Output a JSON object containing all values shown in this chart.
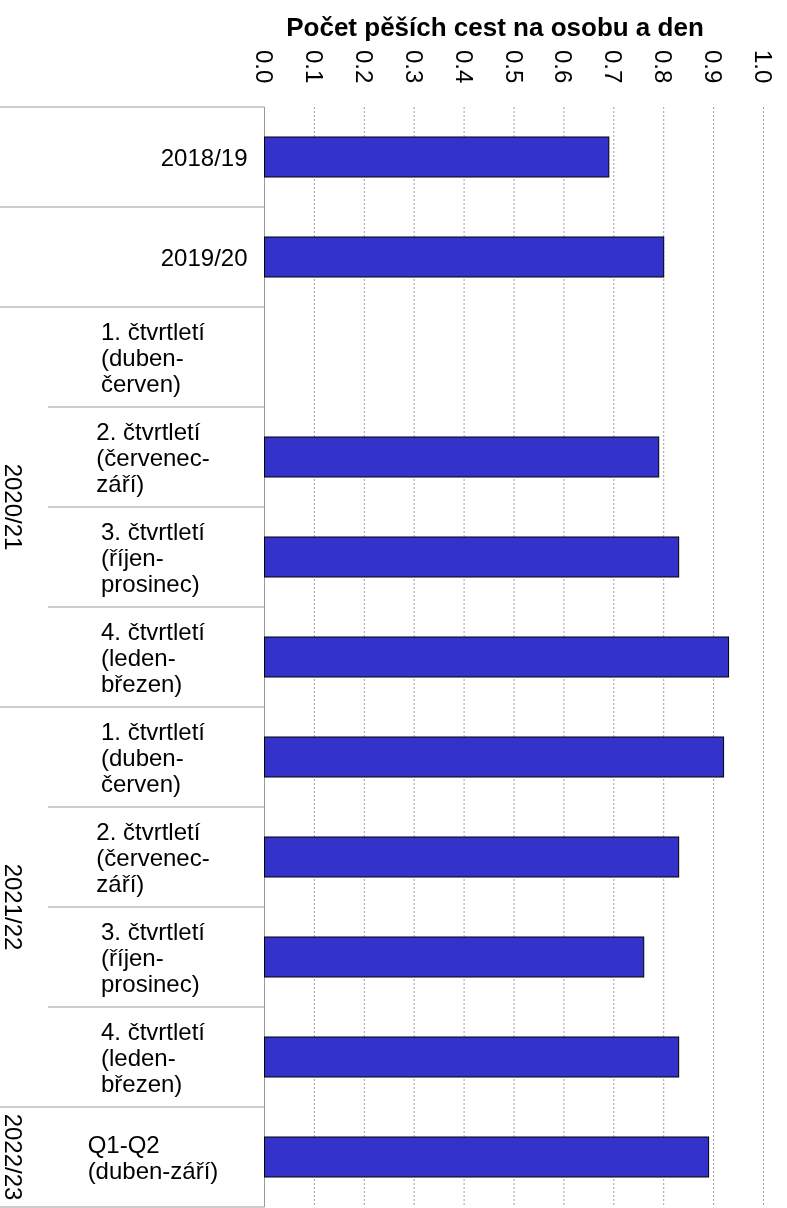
{
  "chart_data": {
    "type": "bar",
    "orientation": "horizontal",
    "xlabel": "Počet pěších cest na osobu a den",
    "categories": [
      "2018/19",
      "2019/20",
      "1. čtvrtletí (duben-červen)",
      "2. čtvrtletí (červenec-září)",
      "3. čtvrtletí (říjen-prosinec)",
      "4. čtvrtletí (leden-březen)",
      "1. čtvrtletí (duben-červen)",
      "2. čtvrtletí (červenec-září)",
      "3. čtvrtletí (říjen-prosinec)",
      "4. čtvrtletí (leden-březen)",
      "Q1-Q2 (duben-září)"
    ],
    "values": [
      0.69,
      0.8,
      null,
      0.79,
      0.83,
      0.93,
      0.92,
      0.83,
      0.76,
      0.83,
      0.89
    ],
    "color": "#3333cc",
    "xlim": [
      0,
      1
    ],
    "xticks": [
      {
        "value": 0,
        "label": "0.0"
      },
      0.1,
      0.2,
      0.3,
      0.4,
      0.5,
      0.6,
      0.7,
      0.8,
      0.9,
      {
        "value": 1,
        "label": "1.0"
      }
    ],
    "grid": "x",
    "annotations": [
      "2020/21",
      "2021/22",
      "2022/23"
    ]
  }
}
